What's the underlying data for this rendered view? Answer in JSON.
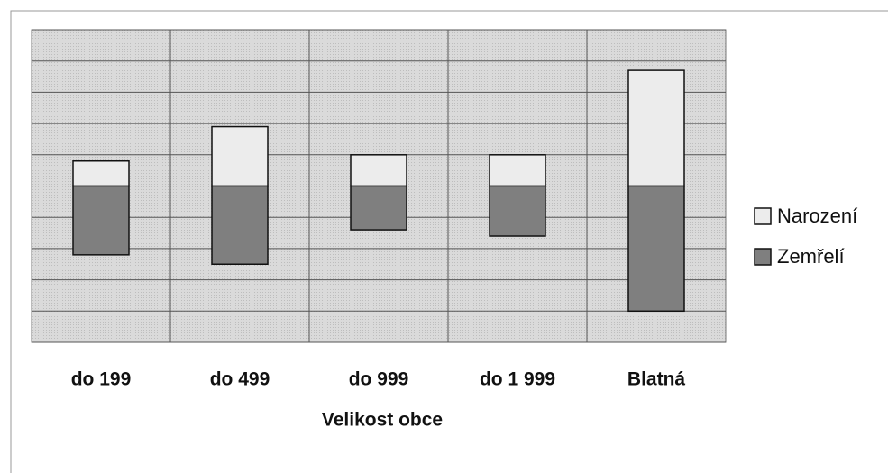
{
  "chart_data": {
    "type": "bar",
    "xlabel": "Velikost obce",
    "categories": [
      "do 199",
      "do 499",
      "do 999",
      "do 1 999",
      "Blatná"
    ],
    "series": [
      {
        "name": "Narození",
        "color": "#ececec",
        "values": [
          0.8,
          1.9,
          1.0,
          1.0,
          3.7
        ]
      },
      {
        "name": "Zemřelí",
        "color": "#7f7f7f",
        "values": [
          -2.2,
          -2.5,
          -1.4,
          -1.6,
          -4.0
        ]
      }
    ],
    "ylim": [
      -5,
      5
    ],
    "yticks": [
      -5,
      -4,
      -3,
      -2,
      -1,
      0,
      1,
      2,
      3,
      4,
      5
    ],
    "grid": true,
    "legend": "right"
  }
}
